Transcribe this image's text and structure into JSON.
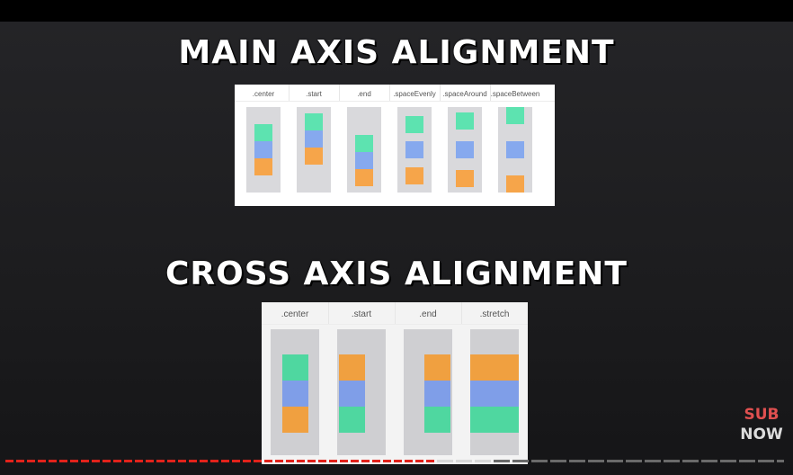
{
  "main_axis": {
    "title": "MAIN AXIS ALIGNMENT",
    "columns": [
      {
        "label": ".center",
        "mode": "center"
      },
      {
        "label": ".start",
        "mode": "start"
      },
      {
        "label": ".end",
        "mode": "end"
      },
      {
        "label": ".spaceEvenly",
        "mode": "spaceEvenly"
      },
      {
        "label": ".spaceAround",
        "mode": "spaceAround"
      },
      {
        "label": ".spaceBetween",
        "mode": "spaceBetween"
      }
    ]
  },
  "cross_axis": {
    "title": "CROSS AXIS ALIGNMENT",
    "columns": [
      {
        "label": ".center",
        "mode": "center"
      },
      {
        "label": ".start",
        "mode": "start"
      },
      {
        "label": ".end",
        "mode": "end"
      },
      {
        "label": ".stretch",
        "mode": "stretch"
      }
    ]
  },
  "colors": {
    "green": "#5de3b0",
    "blue": "#86a9ee",
    "orange": "#f6a54a",
    "cross_green": "#4fd7a0",
    "cross_blue": "#7f9ee8",
    "cross_orange": "#f0a040",
    "track": "#d9d9dc"
  },
  "main_box_order": [
    "green",
    "blue",
    "orange"
  ],
  "cross_box_order": {
    "center": [
      "cross_green",
      "cross_blue",
      "cross_orange"
    ],
    "start": [
      "cross_orange",
      "cross_blue",
      "cross_green"
    ],
    "end": [
      "cross_orange",
      "cross_blue",
      "cross_green"
    ],
    "stretch": [
      "cross_orange",
      "cross_blue",
      "cross_green"
    ]
  },
  "subscribe_badge": {
    "line1": "SUB",
    "line2": "NOW"
  }
}
